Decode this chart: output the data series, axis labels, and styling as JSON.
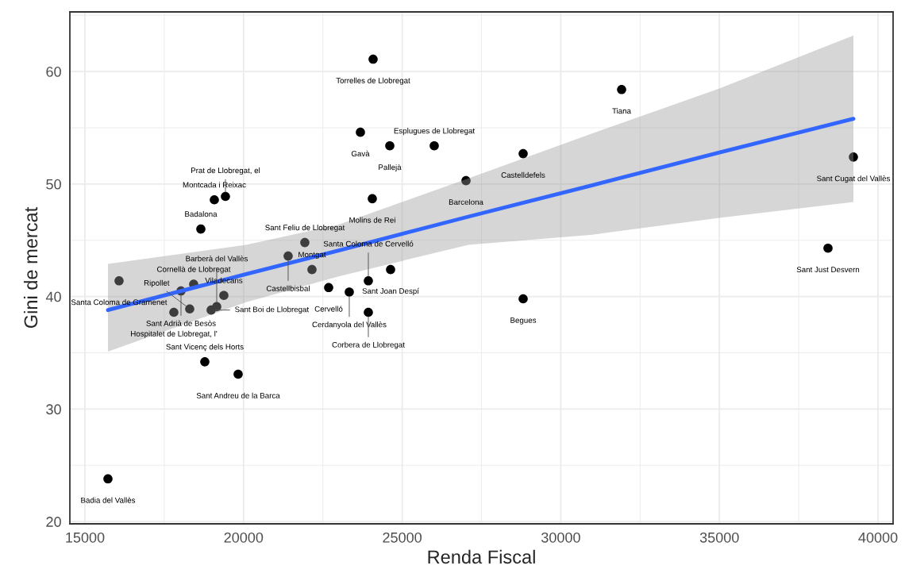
{
  "chart_data": {
    "type": "scatter",
    "xlabel": "Renda Fiscal",
    "ylabel": "Gini de mercat",
    "xlim": [
      14525,
      40475
    ],
    "ylim": [
      19.8,
      65.3
    ],
    "xticks": [
      15000,
      20000,
      25000,
      30000,
      35000,
      40000
    ],
    "yticks": [
      20,
      30,
      40,
      50,
      60
    ],
    "grid": true,
    "legend": false,
    "series": [
      {
        "marker": "circle",
        "color": "#000000",
        "x": [
          15726,
          16076,
          18779,
          19830,
          18428,
          18028,
          19379,
          19154,
          18303,
          18979,
          17803,
          18654,
          19079,
          19429,
          21932,
          21406,
          22157,
          22683,
          24635,
          23934,
          23333,
          23934,
          24084,
          23684,
          24610,
          26011,
          24059,
          27012,
          28814,
          31917,
          39224,
          38423,
          28814
        ],
        "values": [
          23.8,
          41.4,
          34.2,
          33.1,
          41.1,
          40.5,
          40.1,
          39.1,
          38.9,
          38.8,
          38.6,
          46.0,
          48.6,
          48.9,
          44.8,
          43.6,
          42.4,
          40.8,
          42.4,
          41.4,
          40.4,
          38.6,
          61.1,
          54.6,
          53.4,
          53.4,
          48.7,
          50.3,
          52.7,
          58.4,
          52.4,
          44.3,
          39.8
        ]
      },
      {
        "type": "line",
        "color": "#3366ff",
        "x": [
          15726,
          20080,
          23000,
          27087,
          31000,
          35000,
          39224
        ],
        "values": [
          38.8,
          42.0,
          44.1,
          47.1,
          49.9,
          52.8,
          55.8
        ],
        "lower": [
          35.1,
          39.5,
          41.8,
          44.6,
          45.5,
          47.0,
          48.4
        ],
        "upper": [
          42.9,
          44.6,
          46.4,
          50.5,
          54.5,
          58.5,
          63.2
        ]
      }
    ],
    "annotations": [
      {
        "text": "Badia del Vallès",
        "x": 15726,
        "y": 23.8
      },
      {
        "text": "Santa Coloma de Gramenet",
        "x": 16076,
        "y": 41.4
      },
      {
        "text": "Sant Vicenç dels Horts",
        "x": 18779,
        "y": 34.2
      },
      {
        "text": "Sant Andreu de la Barca",
        "x": 19830,
        "y": 33.1
      },
      {
        "text": "Cornellà de Llobregat",
        "x": 18428,
        "y": 41.1
      },
      {
        "text": "Sant Adrià de Besòs",
        "x": 18028,
        "y": 40.5
      },
      {
        "text": "Viladecans",
        "x": 19379,
        "y": 40.1
      },
      {
        "text": "Barberà del Vallès",
        "x": 19154,
        "y": 39.1
      },
      {
        "text": "Ripollet",
        "x": 18303,
        "y": 38.9
      },
      {
        "text": "Sant Boi de Llobregat",
        "x": 18979,
        "y": 38.8
      },
      {
        "text": "Hospitalet de Llobregat, l'",
        "x": 17803,
        "y": 38.6
      },
      {
        "text": "Badalona",
        "x": 18654,
        "y": 46.0
      },
      {
        "text": "Montcada i Reixac",
        "x": 19079,
        "y": 48.6
      },
      {
        "text": "Prat de Llobregat, el",
        "x": 19429,
        "y": 48.9
      },
      {
        "text": "Sant Feliu de Llobregat",
        "x": 21932,
        "y": 44.8
      },
      {
        "text": "Castellbisbal",
        "x": 21406,
        "y": 43.6
      },
      {
        "text": "Montgat",
        "x": 22157,
        "y": 42.4
      },
      {
        "text": "Cervelló",
        "x": 22683,
        "y": 40.8
      },
      {
        "text": "Sant Joan Despí",
        "x": 24635,
        "y": 42.4
      },
      {
        "text": "Santa Coloma de Cervelló",
        "x": 23934,
        "y": 41.4
      },
      {
        "text": "Cerdanyola del Vallès",
        "x": 23333,
        "y": 40.4
      },
      {
        "text": "Corbera de Llobregat",
        "x": 23934,
        "y": 38.6
      },
      {
        "text": "Torrelles de Llobregat",
        "x": 24084,
        "y": 61.1
      },
      {
        "text": "Gavà",
        "x": 23684,
        "y": 54.6
      },
      {
        "text": "Pallejà",
        "x": 24610,
        "y": 53.4
      },
      {
        "text": "Esplugues de Llobregat",
        "x": 26011,
        "y": 53.4
      },
      {
        "text": "Molins de Rei",
        "x": 24059,
        "y": 48.7
      },
      {
        "text": "Barcelona",
        "x": 27012,
        "y": 50.3
      },
      {
        "text": "Castelldefels",
        "x": 28814,
        "y": 52.7
      },
      {
        "text": "Tiana",
        "x": 31917,
        "y": 58.4
      },
      {
        "text": "Sant Cugat del Vallès",
        "x": 39224,
        "y": 52.4
      },
      {
        "text": "Sant Just Desvern",
        "x": 38423,
        "y": 44.3
      },
      {
        "text": "Begues",
        "x": 28814,
        "y": 39.8
      }
    ]
  }
}
